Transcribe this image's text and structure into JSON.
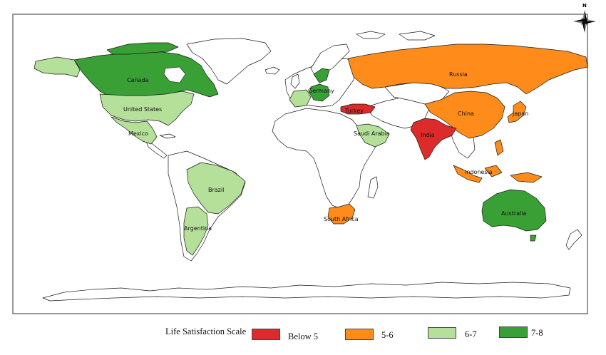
{
  "legend": {
    "title": "Life Satisfaction Scale",
    "items": [
      {
        "label": "Below 5",
        "color": "#dd2a2a"
      },
      {
        "label": "5-6",
        "color": "#ff8c1a"
      },
      {
        "label": "6-7",
        "color": "#b4e09a"
      },
      {
        "label": "7-8",
        "color": "#38a035"
      }
    ]
  },
  "north_arrow": {
    "label": "N",
    "icon": "compass-rose-icon"
  },
  "countries": [
    {
      "id": "canada",
      "label": "Canada",
      "category": "7-8"
    },
    {
      "id": "united-states",
      "label": "United States",
      "category": "6-7"
    },
    {
      "id": "mexico",
      "label": "Mexico",
      "category": "6-7"
    },
    {
      "id": "brazil",
      "label": "Brazil",
      "category": "6-7"
    },
    {
      "id": "argentina",
      "label": "Argentina",
      "category": "6-7"
    },
    {
      "id": "russia",
      "label": "Russia",
      "category": "5-6"
    },
    {
      "id": "china",
      "label": "China",
      "category": "5-6"
    },
    {
      "id": "japan",
      "label": "Japan",
      "category": "5-6"
    },
    {
      "id": "india",
      "label": "India",
      "category": "Below 5"
    },
    {
      "id": "indonesia",
      "label": "Indonesia",
      "category": "5-6"
    },
    {
      "id": "australia",
      "label": "Australia",
      "category": "7-8"
    },
    {
      "id": "south-africa",
      "label": "South Africa",
      "category": "5-6"
    },
    {
      "id": "saudi-arabia",
      "label": "Saudi Arabia",
      "category": "6-7"
    },
    {
      "id": "turkey",
      "label": "Turkey",
      "category": "Below 5"
    },
    {
      "id": "germany",
      "label": "Germany",
      "category": "7-8"
    }
  ]
}
